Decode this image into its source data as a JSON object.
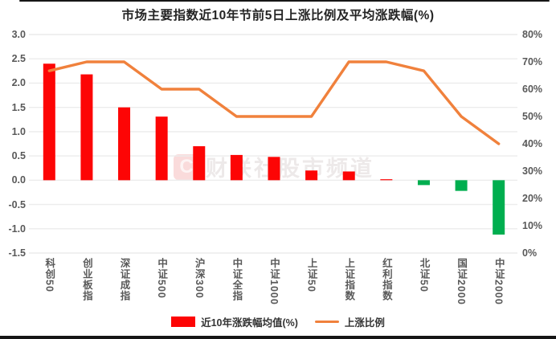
{
  "chart_data": {
    "type": "combo",
    "title": "市场主要指数近10年节前5日上涨比例及平均涨跌幅(%)",
    "categories": [
      "科创50",
      "创业板指",
      "深证成指",
      "中证500",
      "沪深300",
      "中证全指",
      "中证1000",
      "上证50",
      "上证指数",
      "红利指数",
      "北证50",
      "国证2000",
      "中证2000"
    ],
    "series": [
      {
        "name": "近10年涨跌幅均值(%)",
        "type": "bar",
        "axis": "left",
        "values": [
          2.4,
          2.18,
          1.5,
          1.31,
          0.7,
          0.52,
          0.48,
          0.2,
          0.18,
          0.02,
          -0.1,
          -0.22,
          -1.12
        ],
        "positive_color": "#FD0505",
        "negative_color": "#00AE4F"
      },
      {
        "name": "上涨比例",
        "type": "line",
        "axis": "right",
        "values": [
          66.7,
          70,
          70,
          60,
          60,
          50,
          50,
          50,
          70,
          70,
          66.7,
          50,
          40
        ],
        "color": "#F0813C"
      }
    ],
    "left_axis": {
      "ticks": [
        "3.0",
        "2.5",
        "2.0",
        "1.5",
        "1.0",
        "0.5",
        "0.0",
        "-0.5",
        "-1.0",
        "-1.5"
      ],
      "min": -1.5,
      "max": 3.0
    },
    "right_axis": {
      "ticks": [
        "80%",
        "70%",
        "60%",
        "50%",
        "40%",
        "30%",
        "20%",
        "10%",
        "0%"
      ],
      "min": 0,
      "max": 80,
      "unit": "%"
    },
    "legend_position": "bottom",
    "grid": true,
    "grid_color": "#ececec"
  },
  "watermark": {
    "logo": "C",
    "text": "财联社股市频道"
  }
}
